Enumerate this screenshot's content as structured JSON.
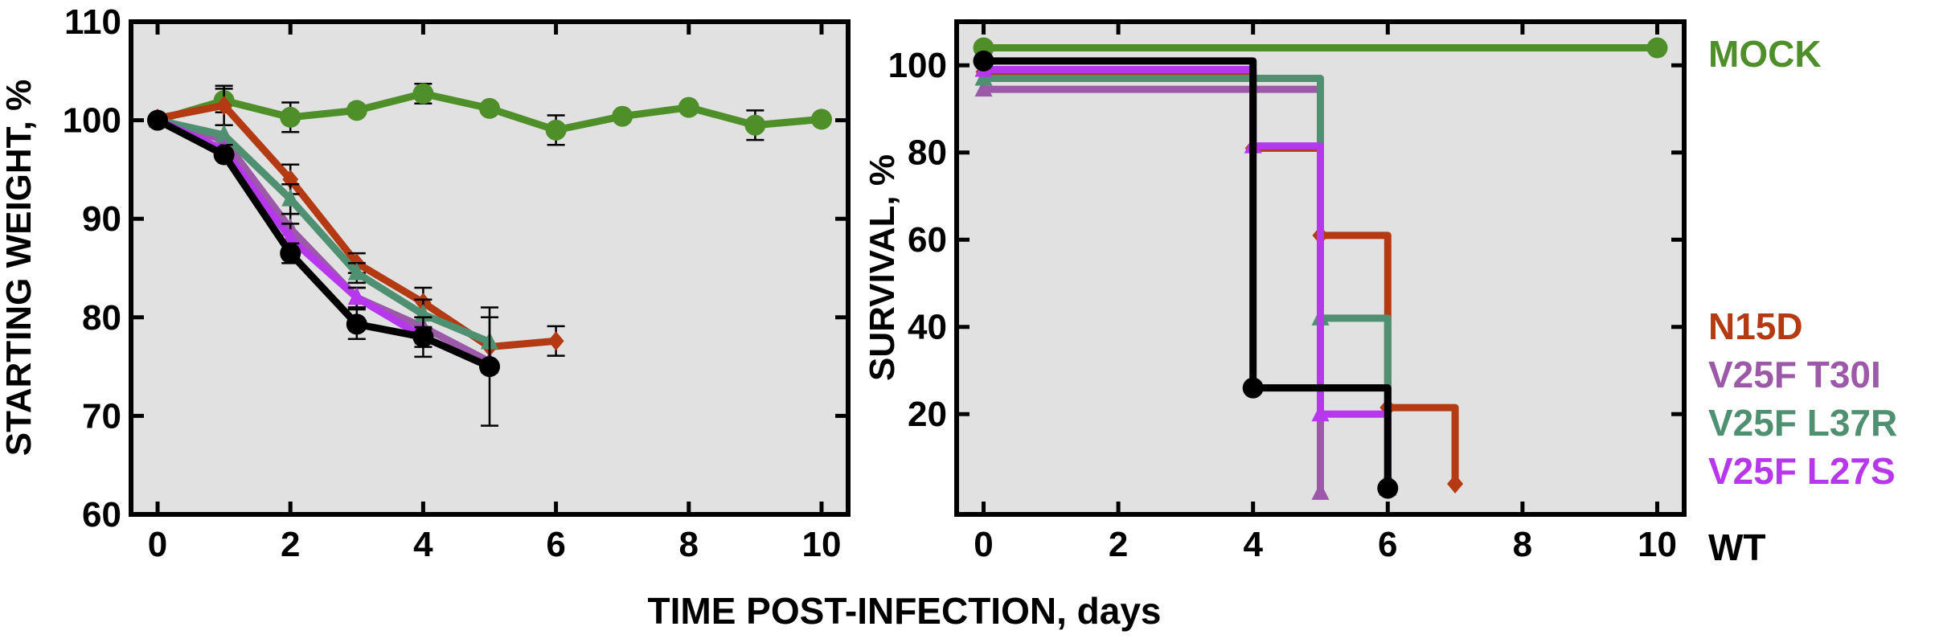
{
  "figure": {
    "xlabel": "TIME POST-INFECTION, days",
    "legend": [
      {
        "name": "MOCK",
        "color": "#4e8f2a"
      },
      {
        "name": "N15D",
        "color": "#b33a12"
      },
      {
        "name": "V25F T30I",
        "color": "#9b59a8"
      },
      {
        "name": "V25F L37R",
        "color": "#4f9072"
      },
      {
        "name": "V25F L27S",
        "color": "#b737ec"
      },
      {
        "name": "WT",
        "color": "#000000"
      }
    ]
  },
  "chart_data": [
    {
      "type": "line",
      "ylabel": "STARTING WEIGHT, %",
      "xlim": [
        -0.4,
        10.4
      ],
      "ylim": [
        60,
        110
      ],
      "xticks": [
        0,
        2,
        4,
        6,
        8,
        10
      ],
      "yticks": [
        60,
        70,
        80,
        90,
        100,
        110
      ],
      "grid": false,
      "background": "#e1e1e1",
      "series": [
        {
          "name": "MOCK",
          "color": "#4e8f2a",
          "marker": "circle",
          "x": [
            0,
            1,
            2,
            3,
            4,
            5,
            6,
            7,
            8,
            9,
            10
          ],
          "y": [
            100,
            102,
            100.3,
            101,
            102.7,
            101.2,
            99,
            100.4,
            101.3,
            99.5,
            100.1
          ],
          "err": [
            0,
            1.2,
            1.5,
            0,
            1,
            0,
            1.5,
            0,
            0,
            1.5,
            0
          ]
        },
        {
          "name": "N15D",
          "color": "#b33a12",
          "marker": "diamond",
          "x": [
            0,
            1,
            2,
            3,
            4,
            5,
            6
          ],
          "y": [
            100.2,
            101.5,
            94,
            85.5,
            81.5,
            77,
            77.6
          ],
          "err": [
            0,
            2,
            1.5,
            1,
            1.5,
            0,
            1.5
          ]
        },
        {
          "name": "V25F T30I",
          "color": "#9b59a8",
          "marker": "triangle",
          "x": [
            0,
            1,
            2,
            3,
            4,
            5
          ],
          "y": [
            100,
            98,
            89,
            82,
            79,
            75.5
          ],
          "err": [
            0,
            0,
            1.5,
            1,
            1,
            0
          ]
        },
        {
          "name": "V25F L37R",
          "color": "#4f9072",
          "marker": "triangle",
          "x": [
            0,
            1,
            2,
            3,
            4,
            5
          ],
          "y": [
            100,
            98.5,
            92,
            84.5,
            80.3,
            77.5
          ],
          "err": [
            0,
            1,
            1.5,
            1,
            1.5,
            2.5
          ]
        },
        {
          "name": "V25F L27S",
          "color": "#b737ec",
          "marker": "triangle",
          "x": [
            0,
            1,
            2,
            3,
            4,
            5
          ],
          "y": [
            100,
            97,
            88,
            82,
            78,
            75
          ],
          "err": [
            0,
            0,
            1.5,
            1,
            1,
            0
          ]
        },
        {
          "name": "WT",
          "color": "#000000",
          "marker": "circle",
          "x": [
            0,
            1,
            2,
            3,
            4,
            5
          ],
          "y": [
            100,
            96.5,
            86.5,
            79.3,
            78,
            75
          ],
          "err": [
            0,
            0.5,
            1,
            1.5,
            2,
            6
          ]
        }
      ]
    },
    {
      "type": "line",
      "step": true,
      "ylabel": "SURVIVAL, %",
      "xlim": [
        -0.4,
        10.4
      ],
      "ylim": [
        -3,
        110
      ],
      "xticks": [
        0,
        2,
        4,
        6,
        8,
        10
      ],
      "yticks": [
        20,
        40,
        60,
        80,
        100
      ],
      "grid": false,
      "background": "#e1e1e1",
      "legend_position": "right",
      "series": [
        {
          "name": "MOCK",
          "color": "#4e8f2a",
          "marker": "circle",
          "x": [
            0,
            10
          ],
          "y": [
            104,
            104
          ]
        },
        {
          "name": "N15D",
          "color": "#b33a12",
          "marker": "diamond",
          "x": [
            0,
            4,
            5,
            6,
            7
          ],
          "y": [
            98.5,
            81,
            61,
            21.5,
            4
          ]
        },
        {
          "name": "V25F T30I",
          "color": "#9b59a8",
          "marker": "triangle",
          "x": [
            0,
            5
          ],
          "y": [
            94.5,
            2
          ]
        },
        {
          "name": "V25F L37R",
          "color": "#4f9072",
          "marker": "triangle",
          "x": [
            0,
            5,
            6
          ],
          "y": [
            97,
            42,
            5
          ]
        },
        {
          "name": "V25F L27S",
          "color": "#b737ec",
          "marker": "triangle",
          "x": [
            0,
            4,
            5,
            6
          ],
          "y": [
            99,
            81.5,
            20,
            3
          ]
        },
        {
          "name": "WT",
          "color": "#000000",
          "marker": "circle",
          "x": [
            0,
            4,
            6
          ],
          "y": [
            101,
            26,
            3
          ]
        }
      ]
    }
  ]
}
